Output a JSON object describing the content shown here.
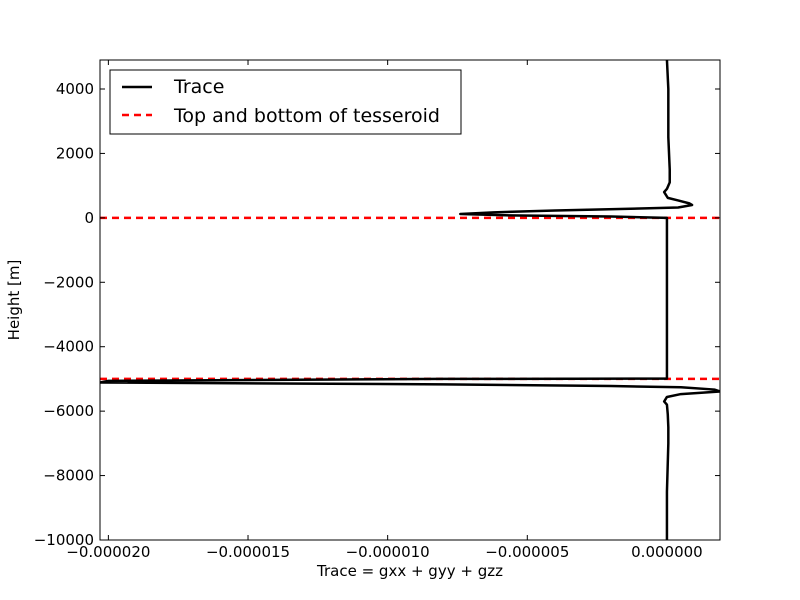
{
  "chart_data": {
    "type": "line",
    "title": "",
    "xlabel": "Trace = gxx + gyy + gzz",
    "ylabel": "Height [m]",
    "xlim": [
      -2.03e-05,
      1.9e-06
    ],
    "ylim": [
      -10000,
      4900
    ],
    "x_ticks": [
      {
        "value": -2e-05,
        "label": "−0.000020"
      },
      {
        "value": -1.5e-05,
        "label": "−0.000015"
      },
      {
        "value": -1e-05,
        "label": "−0.000010"
      },
      {
        "value": -5e-06,
        "label": "−0.000005"
      },
      {
        "value": 0,
        "label": "0.000000"
      }
    ],
    "y_ticks": [
      {
        "value": 4000,
        "label": "4000"
      },
      {
        "value": 2000,
        "label": "2000"
      },
      {
        "value": 0,
        "label": "0"
      },
      {
        "value": -2000,
        "label": "−2000"
      },
      {
        "value": -4000,
        "label": "−4000"
      },
      {
        "value": -6000,
        "label": "−6000"
      },
      {
        "value": -8000,
        "label": "−8000"
      },
      {
        "value": -10000,
        "label": "−10000"
      }
    ],
    "grid": false,
    "legend_position": "top-left",
    "series": [
      {
        "name": "Trace",
        "style": "solid",
        "color": "#000000",
        "points": [
          [
            0.0,
            4900
          ],
          [
            5e-08,
            4000
          ],
          [
            5e-08,
            2500
          ],
          [
            1e-07,
            1500
          ],
          [
            1e-07,
            1100
          ],
          [
            0.0,
            900
          ],
          [
            -1e-07,
            800
          ],
          [
            3e-08,
            620
          ],
          [
            4e-07,
            540
          ],
          [
            8e-07,
            450
          ],
          [
            9e-07,
            400
          ],
          [
            4e-07,
            320
          ],
          [
            -1.5e-06,
            280
          ],
          [
            -4e-06,
            230
          ],
          [
            -6.2e-06,
            170
          ],
          [
            -7.4e-06,
            120
          ],
          [
            -5.8e-06,
            80
          ],
          [
            -2e-06,
            40
          ],
          [
            0.0,
            0
          ],
          [
            0.0,
            -2000
          ],
          [
            0.0,
            -4000
          ],
          [
            0.0,
            -4990
          ],
          [
            -8e-06,
            -5000
          ],
          [
            -2e-05,
            -5060
          ],
          [
            -2.03e-05,
            -5110
          ],
          [
            -8e-06,
            -5170
          ],
          [
            -2e-06,
            -5220
          ],
          [
            5e-07,
            -5260
          ],
          [
            1.7e-06,
            -5330
          ],
          [
            1.9e-06,
            -5390
          ],
          [
            5e-07,
            -5470
          ],
          [
            0.0,
            -5560
          ],
          [
            -1e-07,
            -5700
          ],
          [
            0.0,
            -5800
          ],
          [
            3e-08,
            -6100
          ],
          [
            5e-08,
            -6500
          ],
          [
            5e-08,
            -7000
          ],
          [
            0.0,
            -8500
          ],
          [
            0.0,
            -10000
          ]
        ]
      }
    ],
    "reference_lines": {
      "name": "Top and bottom of tesseroid",
      "style": "dashed",
      "color": "#ff0000",
      "y_values": [
        0,
        -5000
      ]
    }
  }
}
